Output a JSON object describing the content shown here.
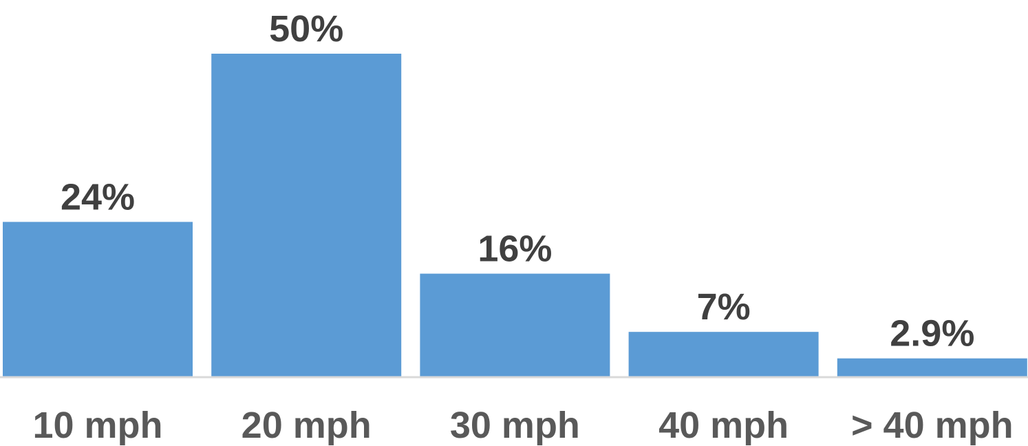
{
  "chart_data": {
    "type": "bar",
    "categories": [
      "10 mph",
      "20 mph",
      "30 mph",
      "40 mph",
      "> 40 mph"
    ],
    "values": [
      24,
      50,
      16,
      7,
      2.9
    ],
    "data_labels": [
      "24%",
      "50%",
      "16%",
      "7%",
      "2.9%"
    ],
    "ylim": [
      0,
      50
    ],
    "grid": false,
    "colors": {
      "bar": "#5B9BD5",
      "axis": "#D9D9D9"
    }
  }
}
